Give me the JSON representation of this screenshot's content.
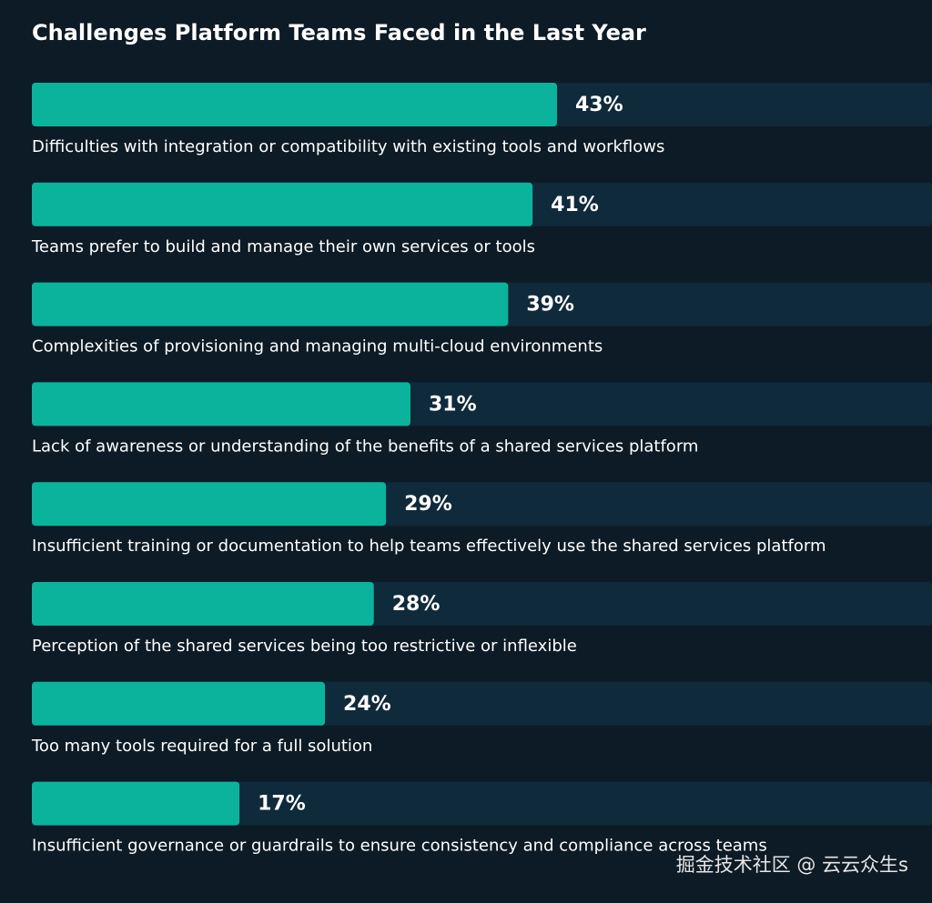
{
  "chart_data": {
    "type": "bar",
    "orientation": "horizontal",
    "title": "Challenges Platform Teams Faced in the Last Year",
    "categories": [
      "Difficulties with integration or compatibility with existing tools and workflows",
      "Teams prefer to build and manage their own services or tools",
      "Complexities of provisioning and managing multi-cloud environments",
      "Lack of awareness or understanding of the benefits of a shared services platform",
      "Insufficient training or documentation to help teams effectively use the shared services platform",
      "Perception of the shared services being too restrictive or inflexible",
      "Too many tools required for a full solution",
      "Insufficient governance or guardrails to ensure consistency and compliance across teams"
    ],
    "values": [
      43,
      41,
      39,
      31,
      29,
      28,
      24,
      17
    ],
    "value_labels": [
      "43%",
      "41%",
      "39%",
      "31%",
      "29%",
      "28%",
      "24%",
      "17%"
    ],
    "color": "#0bb39c",
    "watermark": "掘金技术社区 @ 云云众生s"
  }
}
